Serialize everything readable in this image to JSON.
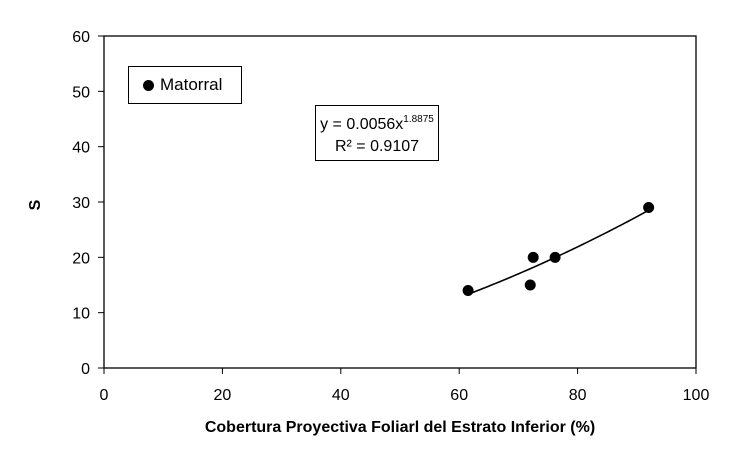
{
  "chart_data": {
    "type": "scatter",
    "title": "",
    "xlabel": "Cobertura Proyectiva Foliarl del Estrato Inferior (%)",
    "ylabel": "S",
    "xlim": [
      0,
      100
    ],
    "ylim": [
      0,
      60
    ],
    "x_ticks": [
      "0",
      "20",
      "40",
      "60",
      "80",
      "100"
    ],
    "y_ticks": [
      "0",
      "10",
      "20",
      "30",
      "40",
      "50",
      "60"
    ],
    "grid": false,
    "legend_position": "top-left",
    "series": [
      {
        "name": "Matorral",
        "color": "#000000",
        "marker": "circle",
        "points": [
          {
            "x": 61.5,
            "y": 14
          },
          {
            "x": 72.0,
            "y": 15
          },
          {
            "x": 72.5,
            "y": 20
          },
          {
            "x": 76.2,
            "y": 20
          },
          {
            "x": 92.0,
            "y": 29
          }
        ]
      }
    ],
    "trendline": {
      "type": "power",
      "coefficient": 0.0056,
      "exponent": 1.8875,
      "x_range": [
        61.5,
        92.0
      ],
      "equation_prefix": "y = 0.0056x",
      "equation_exponent": "1.8875",
      "r_squared_text": "R² = 0.9107"
    }
  }
}
